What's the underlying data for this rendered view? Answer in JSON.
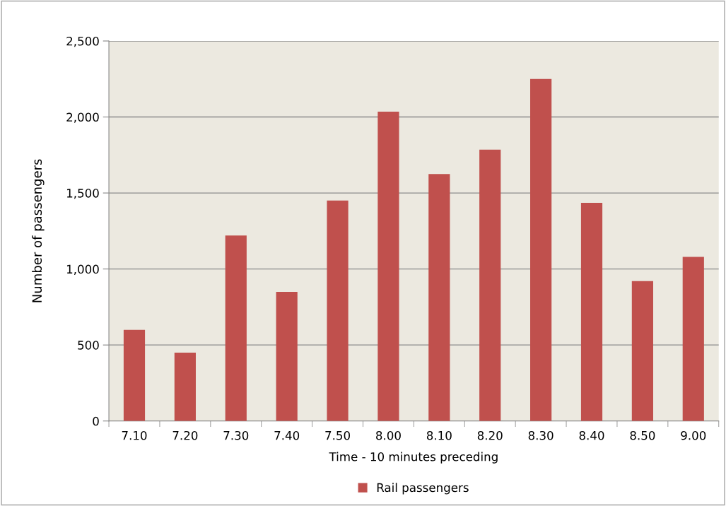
{
  "chart_data": {
    "type": "bar",
    "xlabel": "Time - 10 minutes preceding",
    "ylabel": "Number of passengers",
    "categories": [
      "7.10",
      "7.20",
      "7.30",
      "7.40",
      "7.50",
      "8.00",
      "8.10",
      "8.20",
      "8.30",
      "8.40",
      "8.50",
      "9.00"
    ],
    "series": [
      {
        "name": "Rail passengers",
        "color": "#c0504d",
        "values": [
          600,
          450,
          1220,
          850,
          1450,
          2035,
          1625,
          1785,
          2250,
          1435,
          920,
          1080
        ]
      }
    ],
    "ylim": [
      0,
      2500
    ],
    "yticks": [
      {
        "value": 0,
        "label": "0"
      },
      {
        "value": 500,
        "label": "500"
      },
      {
        "value": 1000,
        "label": "1,000"
      },
      {
        "value": 1500,
        "label": "1,500"
      },
      {
        "value": 2000,
        "label": "2,000"
      },
      {
        "value": 2500,
        "label": "2,500"
      }
    ],
    "grid": "y",
    "legend": "bottom"
  }
}
